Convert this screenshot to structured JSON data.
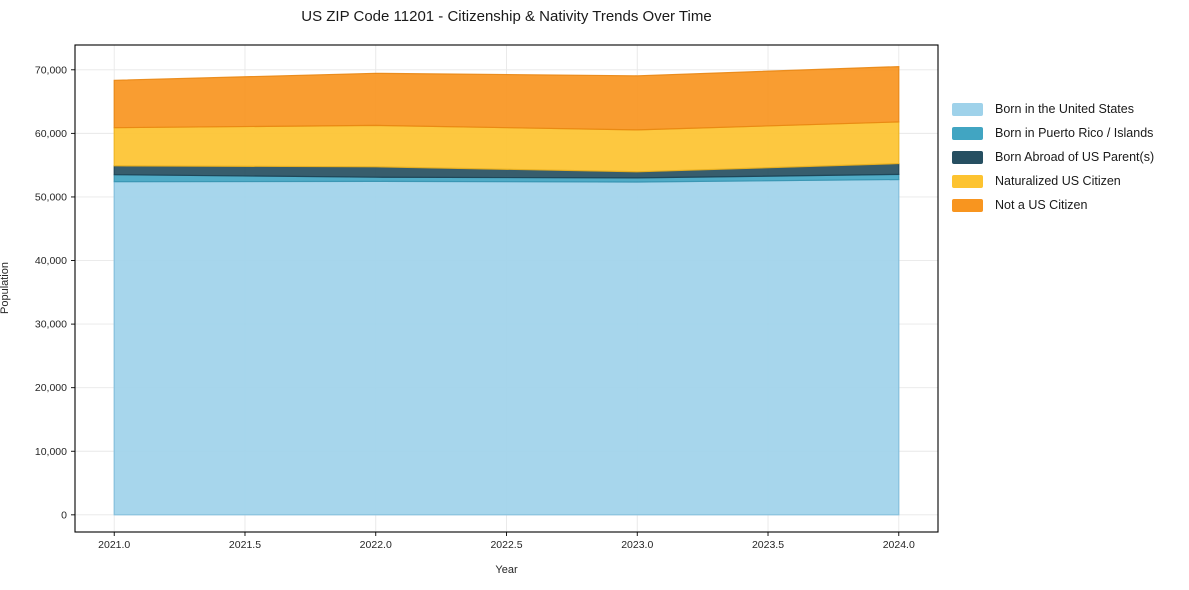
{
  "title": "US ZIP Code 11201 - Citizenship & Nativity Trends Over Time",
  "chart_data": {
    "type": "area",
    "stacked": true,
    "title": "US ZIP Code 11201 - Citizenship & Nativity Trends Over Time",
    "xlabel": "Year",
    "ylabel": "Population",
    "x": [
      2021,
      2022,
      2023,
      2024
    ],
    "series": [
      {
        "name": "Born in the United States",
        "color": "#9FD2EA",
        "edge": "#7FBEDC",
        "values": [
          52400,
          52450,
          52350,
          52750
        ]
      },
      {
        "name": "Born in Puerto Rico / Islands",
        "color": "#41A5C2",
        "edge": "#3693B0",
        "values": [
          1100,
          650,
          650,
          800
        ]
      },
      {
        "name": "Born Abroad of US Parent(s)",
        "color": "#264F61",
        "edge": "#1D4254",
        "values": [
          1400,
          1650,
          950,
          1700
        ]
      },
      {
        "name": "Naturalized US Citizen",
        "color": "#FDC330",
        "edge": "#EFB41F",
        "values": [
          6000,
          6500,
          6600,
          6550
        ]
      },
      {
        "name": "Not a US Citizen",
        "color": "#F8951F",
        "edge": "#E98612",
        "values": [
          7450,
          8200,
          8500,
          8700
        ]
      }
    ],
    "totals": [
      68350,
      69450,
      69050,
      70500
    ],
    "xticks": {
      "values": [
        2021.0,
        2021.5,
        2022.0,
        2022.5,
        2023.0,
        2023.5,
        2024.0
      ],
      "labels": [
        "2021.0",
        "2021.5",
        "2022.0",
        "2022.5",
        "2023.0",
        "2023.5",
        "2024.0"
      ]
    },
    "yticks": {
      "values": [
        0,
        10000,
        20000,
        30000,
        40000,
        50000,
        60000,
        70000
      ],
      "labels": [
        "0",
        "10,000",
        "20,000",
        "30,000",
        "40,000",
        "50,000",
        "60,000",
        "70,000"
      ]
    },
    "xlim": [
      2020.85,
      2024.15
    ],
    "ylim": [
      -2700,
      73900
    ],
    "grid": true,
    "grid_color": "#e8e8e8",
    "spine_color": "#000000",
    "tick_text_color": "#262626",
    "legend_position": "right",
    "baseline": "zero"
  }
}
